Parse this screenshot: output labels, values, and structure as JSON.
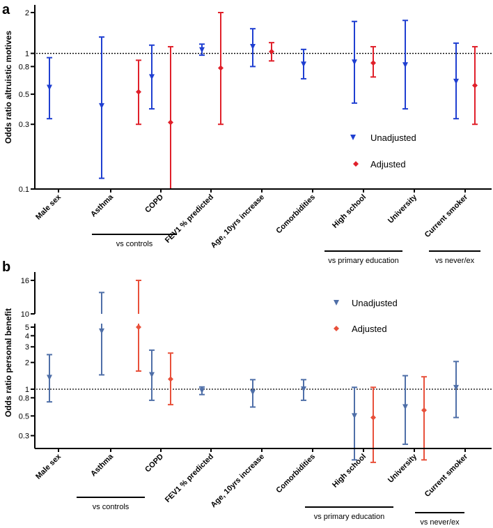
{
  "colors": {
    "a_unadjusted": "#1f3fd1",
    "a_adjusted": "#e0202a",
    "b_unadjusted": "#4f6fa8",
    "b_adjusted": "#e8503a"
  },
  "chart_data": [
    {
      "panel": "a",
      "type": "scatter",
      "subtype": "forest-plot (point estimate with 95% CI error bars)",
      "ylabel": "Odds ratio altruistic motives",
      "yscale": "log",
      "ylim": [
        0.1,
        2
      ],
      "yticks": [
        0.1,
        0.3,
        0.5,
        0.8,
        1,
        2
      ],
      "ytick_labels": [
        "0.1",
        "0.3",
        "0.5",
        "0.8",
        "1",
        "2"
      ],
      "reference_line": 1,
      "categories": [
        "Male sex",
        "Asthma",
        "COPD",
        "FEV1 % predicted",
        "Age, 10yrs increase",
        "Comorbidities",
        "High school",
        "University",
        "Current smoker"
      ],
      "groups": [
        {
          "label": "vs controls",
          "categories": [
            "Asthma",
            "COPD"
          ]
        },
        {
          "label": "vs primary education",
          "categories": [
            "High school",
            "University"
          ]
        },
        {
          "label": "vs never/ex",
          "categories": [
            "Current smoker"
          ]
        }
      ],
      "legend": [
        "Unadjusted",
        "Adjusted"
      ],
      "legend_position": "lower-right",
      "series": [
        {
          "name": "Unadjusted",
          "marker": "triangle-down",
          "values": [
            0.56,
            0.41,
            0.67,
            1.06,
            1.12,
            0.83,
            0.86,
            0.82,
            0.62
          ],
          "ci_low": [
            0.33,
            0.12,
            0.39,
            0.97,
            0.8,
            0.65,
            0.43,
            0.39,
            0.33
          ],
          "ci_high": [
            0.93,
            1.32,
            1.15,
            1.17,
            1.52,
            1.07,
            1.72,
            1.75,
            1.19
          ]
        },
        {
          "name": "Adjusted",
          "marker": "diamond",
          "values": [
            null,
            0.52,
            0.31,
            0.78,
            1.03,
            null,
            0.85,
            null,
            0.58
          ],
          "ci_low": [
            null,
            0.3,
            0.1,
            0.3,
            0.88,
            null,
            0.67,
            null,
            0.3
          ],
          "ci_high": [
            null,
            0.89,
            1.12,
            2.0,
            1.2,
            null,
            1.12,
            null,
            1.12
          ]
        }
      ]
    },
    {
      "panel": "b",
      "type": "scatter",
      "subtype": "forest-plot with broken y-axis",
      "ylabel": "Odds ratio personal benefit",
      "yscale": "log",
      "ylim_lower": [
        0.2,
        5.5
      ],
      "ylim_upper": [
        10,
        17
      ],
      "yticks": [
        0.3,
        0.5,
        0.8,
        1,
        2,
        3,
        4,
        5,
        10,
        16
      ],
      "ytick_labels": [
        "0.3",
        "0.5",
        "0.8",
        "1",
        "2",
        "3",
        "4",
        "5",
        "10",
        "16"
      ],
      "reference_line": 1,
      "categories": [
        "Male sex",
        "Asthma",
        "COPD",
        "FEV1 % predicted",
        "Age, 10yrs increase",
        "Comorbidities",
        "High school",
        "University",
        "Current smoker"
      ],
      "groups": [
        {
          "label": "vs controls",
          "categories": [
            "Asthma",
            "COPD"
          ]
        },
        {
          "label": "vs primary education",
          "categories": [
            "High school",
            "University"
          ]
        },
        {
          "label": "vs never/ex",
          "categories": [
            "Current smoker"
          ]
        }
      ],
      "legend": [
        "Unadjusted",
        "Adjusted"
      ],
      "legend_position": "upper-right",
      "series": [
        {
          "name": "Unadjusted",
          "marker": "triangle-down",
          "values": [
            1.35,
            4.5,
            1.45,
            0.96,
            0.92,
            1.0,
            0.5,
            0.63,
            1.04
          ],
          "ci_low": [
            0.72,
            1.45,
            0.75,
            0.87,
            0.63,
            0.75,
            0.16,
            0.24,
            0.48
          ],
          "ci_high": [
            2.45,
            13.5,
            2.75,
            1.06,
            1.28,
            1.28,
            1.05,
            1.42,
            2.05
          ]
        },
        {
          "name": "Adjusted",
          "marker": "diamond",
          "values": [
            null,
            5.0,
            1.3,
            null,
            null,
            null,
            0.48,
            0.58,
            null
          ],
          "ci_low": [
            null,
            1.6,
            0.67,
            null,
            null,
            null,
            0.15,
            0.16,
            null
          ],
          "ci_high": [
            null,
            16.0,
            2.55,
            null,
            null,
            null,
            1.05,
            1.38,
            null
          ]
        }
      ]
    }
  ]
}
